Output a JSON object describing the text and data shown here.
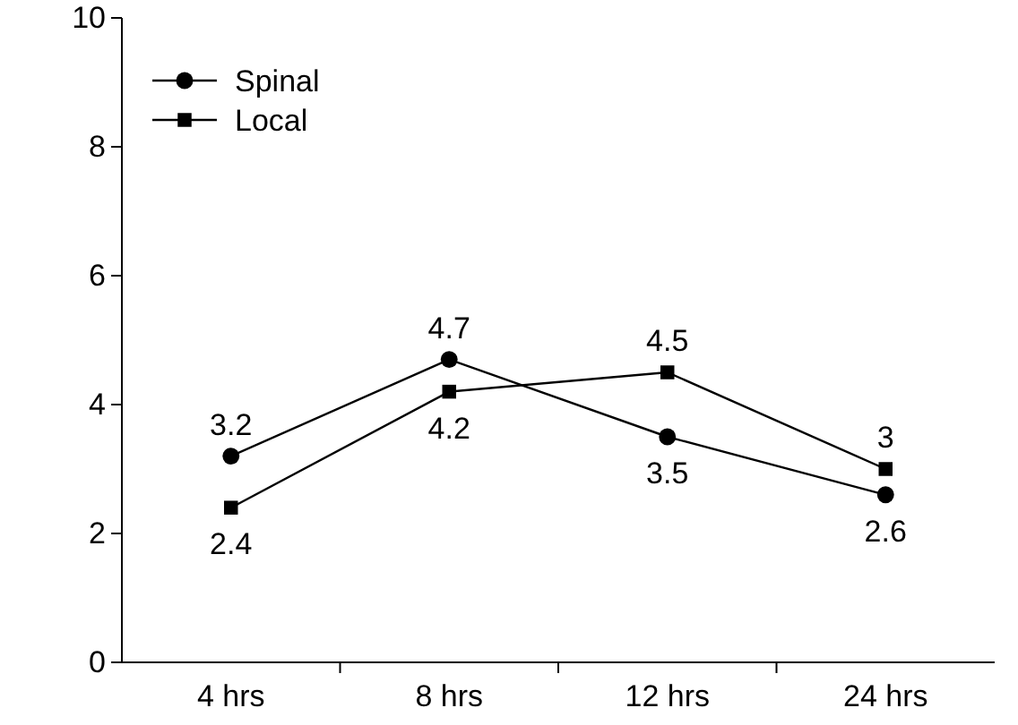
{
  "chart_data": {
    "type": "line",
    "categories": [
      "4 hrs",
      "8 hrs",
      "12 hrs",
      "24 hrs"
    ],
    "series": [
      {
        "name": "Spinal",
        "color": "#000000",
        "marker": "circle",
        "values": [
          3.2,
          4.7,
          3.5,
          2.6
        ]
      },
      {
        "name": "Local",
        "color": "#000000",
        "marker": "square",
        "values": [
          2.4,
          4.2,
          4.5,
          3
        ]
      }
    ],
    "ylim": [
      0,
      10
    ],
    "yticks": [
      0,
      2,
      4,
      6,
      8,
      10
    ],
    "data_labels": true,
    "legend": "top left",
    "grid": false,
    "line_style": "solid"
  }
}
